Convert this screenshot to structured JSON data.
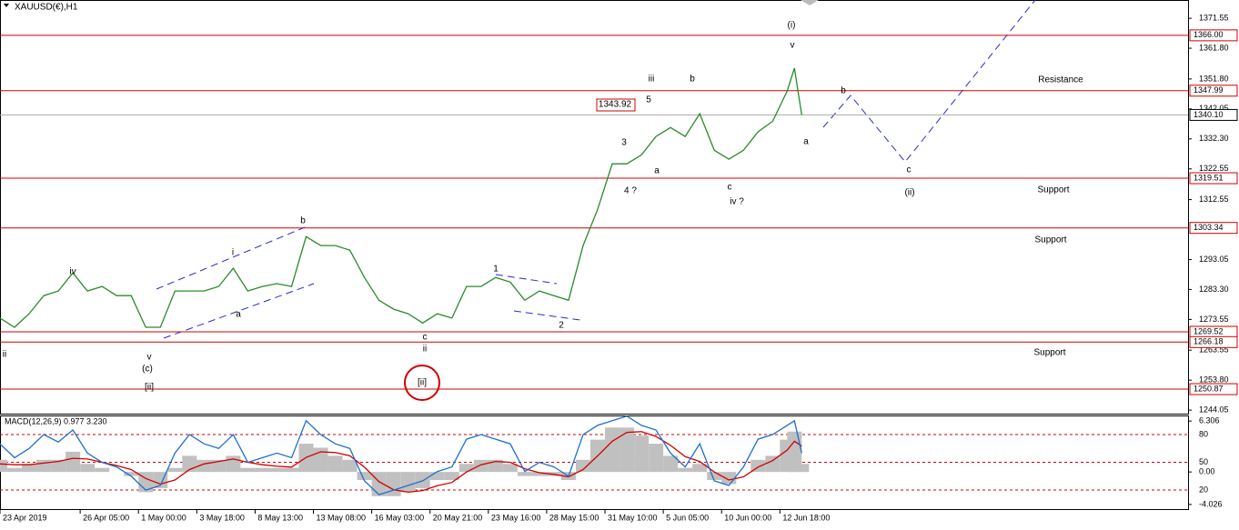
{
  "symbol": "XAUUSD(€),H1",
  "chart_data": [
    {
      "type": "line",
      "x": [
        0,
        4,
        8,
        12,
        16,
        20,
        24,
        28,
        32,
        36,
        40,
        44,
        48,
        52,
        56,
        60,
        64,
        68,
        72,
        76,
        80,
        84,
        88,
        92,
        96,
        100,
        104,
        108,
        112,
        116,
        120,
        124,
        128,
        132,
        136,
        140,
        144,
        148,
        152,
        156,
        160,
        164,
        168,
        172,
        176,
        180,
        184,
        188,
        192,
        196,
        200,
        204,
        208,
        212,
        216,
        218,
        220
      ],
      "series": [
        {
          "color": "#2a8a2a",
          "values": [
            1274,
            1271,
            1275.4,
            1281.3,
            1282.8,
            1288.7,
            1282.8,
            1284.3,
            1281.3,
            1281.3,
            1271,
            1271,
            1282.8,
            1282.8,
            1282.8,
            1284.3,
            1290.2,
            1282.8,
            1284.3,
            1285.2,
            1284.3,
            1300.5,
            1297.6,
            1297.6,
            1296.1,
            1287.2,
            1279.8,
            1276.9,
            1275.4,
            1272.4,
            1275.4,
            1274,
            1284.3,
            1284.3,
            1287.2,
            1285.7,
            1279.8,
            1282.8,
            1281.3,
            1279.8,
            1297.6,
            1309.4,
            1324.2,
            1324.2,
            1327.1,
            1333.1,
            1336,
            1333.1,
            1340.5,
            1328.6,
            1325.7,
            1328.6,
            1334.6,
            1338,
            1347.9,
            1355.3,
            1340.1
          ]
        }
      ],
      "xlim": [
        0,
        326
      ],
      "ylim": [
        1242.9,
        1377.5
      ],
      "xticks": [
        {
          "value": 0,
          "label": "23 Apr 2019"
        },
        {
          "value": 22,
          "label": "26 Apr 05:00"
        },
        {
          "value": 38,
          "label": "1 May 00:00"
        },
        {
          "value": 54,
          "label": "3 May 18:00"
        },
        {
          "value": 70,
          "label": "8 May 13:00"
        },
        {
          "value": 86,
          "label": "13 May 08:00"
        },
        {
          "value": 102,
          "label": "16 May 03:00"
        },
        {
          "value": 118,
          "label": "20 May 21:00"
        },
        {
          "value": 134,
          "label": "23 May 16:00"
        },
        {
          "value": 150,
          "label": "28 May 15:00"
        },
        {
          "value": 166,
          "label": "31 May 10:00"
        },
        {
          "value": 182,
          "label": "5 Jun 05:00"
        },
        {
          "value": 198,
          "label": "10 Jun 00:00"
        },
        {
          "value": 214,
          "label": "12 Jun 18:00"
        }
      ],
      "yticks": [
        {
          "value": 1371.55,
          "label": "1371.55"
        },
        {
          "value": 1361.8,
          "label": "1361.80"
        },
        {
          "value": 1351.8,
          "label": "1351.80"
        },
        {
          "value": 1342.05,
          "label": "1342.05"
        },
        {
          "value": 1332.3,
          "label": "1332.30"
        },
        {
          "value": 1322.55,
          "label": "1322.55"
        },
        {
          "value": 1312.55,
          "label": "1312.55"
        },
        {
          "value": 1293.05,
          "label": "1293.05"
        },
        {
          "value": 1283.3,
          "label": "1283.30"
        },
        {
          "value": 1273.55,
          "label": "1273.55"
        },
        {
          "value": 1263.55,
          "label": "1263.55"
        },
        {
          "value": 1253.8,
          "label": "1253.80"
        },
        {
          "value": 1244.05,
          "label": "1244.05"
        }
      ],
      "levels": [
        {
          "value": 1366,
          "label": "1366.00"
        },
        {
          "value": 1347.99,
          "label": "1347.99"
        },
        {
          "value": 1319.51,
          "label": "1319.51"
        },
        {
          "value": 1303.34,
          "label": "1303.34"
        },
        {
          "value": 1269.52,
          "label": "1269.52"
        },
        {
          "value": 1266.18,
          "label": "1266.18"
        },
        {
          "value": 1250.87,
          "label": "1250.87"
        }
      ],
      "level_color": "#d00000",
      "current_price": {
        "value": 1340.1,
        "label": "1340.10"
      },
      "annotations": [
        {
          "text": "(i)",
          "color": "#1a1a9a"
        },
        {
          "text": "v",
          "color": "#e020e0"
        },
        {
          "text": "iii",
          "color": "#e020e0"
        },
        {
          "text": "5",
          "color": "#000000"
        },
        {
          "text": "1343.92",
          "color": "#d00000"
        },
        {
          "text": "b",
          "color": "#000000"
        },
        {
          "text": "3",
          "color": "#000000"
        },
        {
          "text": "a",
          "color": "#000000"
        },
        {
          "text": "4 ?",
          "color": "#000000"
        },
        {
          "text": "c",
          "color": "#000000"
        },
        {
          "text": "iv ?",
          "color": "#e020e0"
        },
        {
          "text": "b",
          "color": "#e020e0"
        },
        {
          "text": "a",
          "color": "#e020e0"
        },
        {
          "text": "c",
          "color": "#e020e0"
        },
        {
          "text": "(ii)",
          "color": "#1a1a9a"
        },
        {
          "text": "Resistance",
          "color": "#d00000"
        },
        {
          "text": "Support",
          "color": "#d00000"
        },
        {
          "text": "Support",
          "color": "#d00000"
        },
        {
          "text": "Support",
          "color": "#d00000"
        },
        {
          "text": "iv",
          "color": "#e020e0"
        },
        {
          "text": "i",
          "color": "#e020e0"
        },
        {
          "text": "b",
          "color": "#000000"
        },
        {
          "text": "a",
          "color": "#000000"
        },
        {
          "text": "v",
          "color": "#e020e0"
        },
        {
          "text": "(c)",
          "color": "#1a1a9a"
        },
        {
          "text": "[ii]",
          "color": "#1a7a1a"
        },
        {
          "text": "ii",
          "color": "#e020e0"
        },
        {
          "text": "c",
          "color": "#000000"
        },
        {
          "text": "ii",
          "color": "#e020e0"
        },
        {
          "text": "[ii]",
          "color": "#1a7a1a"
        },
        {
          "text": "1",
          "color": "#000000"
        },
        {
          "text": "2",
          "color": "#000000"
        }
      ]
    },
    {
      "type": "macd",
      "title": "MACD(12,26,9) 0.977 3.230",
      "x": [
        0,
        4,
        8,
        12,
        16,
        20,
        24,
        28,
        32,
        36,
        40,
        44,
        48,
        52,
        56,
        60,
        64,
        68,
        72,
        76,
        80,
        84,
        88,
        92,
        96,
        100,
        104,
        108,
        112,
        116,
        120,
        124,
        128,
        132,
        136,
        140,
        144,
        148,
        152,
        156,
        160,
        164,
        168,
        172,
        176,
        180,
        184,
        188,
        192,
        196,
        200,
        204,
        208,
        212,
        216,
        218,
        220
      ],
      "xlim": [
        0,
        326
      ],
      "ylim": [
        -4.6,
        7.0
      ],
      "y2lim": [
        -0.6,
        100.7
      ],
      "yticks": [
        {
          "value": 6.306,
          "label": "6.306"
        },
        {
          "value": 0,
          "label": "0.00"
        },
        {
          "value": -4.026,
          "label": "-4.026"
        }
      ],
      "y2ticks": [
        80,
        50,
        20
      ],
      "series": [
        {
          "type": "bar",
          "color": "#c0c0c0",
          "values": [
            1.5,
            0.5,
            1,
            1.5,
            1.5,
            2.5,
            1,
            0.5,
            0,
            -0.5,
            -2.5,
            -2,
            0.5,
            2,
            1.5,
            1.5,
            2,
            0.5,
            0.5,
            0.5,
            0.5,
            3.5,
            3,
            2,
            1.5,
            -1,
            -3,
            -3,
            -2.5,
            -2,
            -1,
            -1,
            1,
            1.5,
            1.5,
            1,
            -0.5,
            -0.5,
            -0.5,
            -1,
            1.5,
            4,
            5.5,
            5.5,
            4.5,
            3.5,
            2,
            0.5,
            1,
            -1,
            -1.5,
            0,
            1.5,
            2,
            4,
            5,
            1
          ]
        },
        {
          "type": "line",
          "color": "#d00000",
          "values": [
            1.0,
            0.9,
            0.9,
            1.1,
            1.3,
            1.7,
            1.6,
            1.2,
            0.8,
            0.3,
            -0.8,
            -1.5,
            -1.0,
            0.3,
            1.0,
            1.3,
            1.6,
            1.2,
            0.9,
            0.7,
            0.6,
            1.8,
            2.5,
            2.4,
            2.0,
            0.6,
            -1.2,
            -2.2,
            -2.5,
            -2.3,
            -1.7,
            -1.3,
            0,
            0.9,
            1.3,
            1.2,
            0.4,
            -0.1,
            -0.3,
            -0.6,
            0.3,
            2.0,
            3.8,
            4.9,
            5.0,
            4.4,
            3.3,
            1.9,
            1.3,
            0,
            -1.0,
            -0.6,
            0.6,
            1.4,
            2.7,
            3.8,
            3.2
          ]
        },
        {
          "type": "line",
          "axis": "y2",
          "color": "#1e6fd0",
          "values": [
            70,
            55,
            65,
            80,
            72,
            85,
            60,
            50,
            45,
            35,
            20,
            25,
            60,
            80,
            70,
            65,
            80,
            50,
            55,
            60,
            55,
            95,
            80,
            70,
            65,
            30,
            15,
            20,
            25,
            30,
            40,
            45,
            75,
            80,
            75,
            70,
            40,
            50,
            45,
            35,
            80,
            90,
            95,
            100,
            90,
            85,
            60,
            45,
            70,
            30,
            25,
            45,
            75,
            80,
            90,
            95,
            60
          ]
        }
      ]
    }
  ]
}
